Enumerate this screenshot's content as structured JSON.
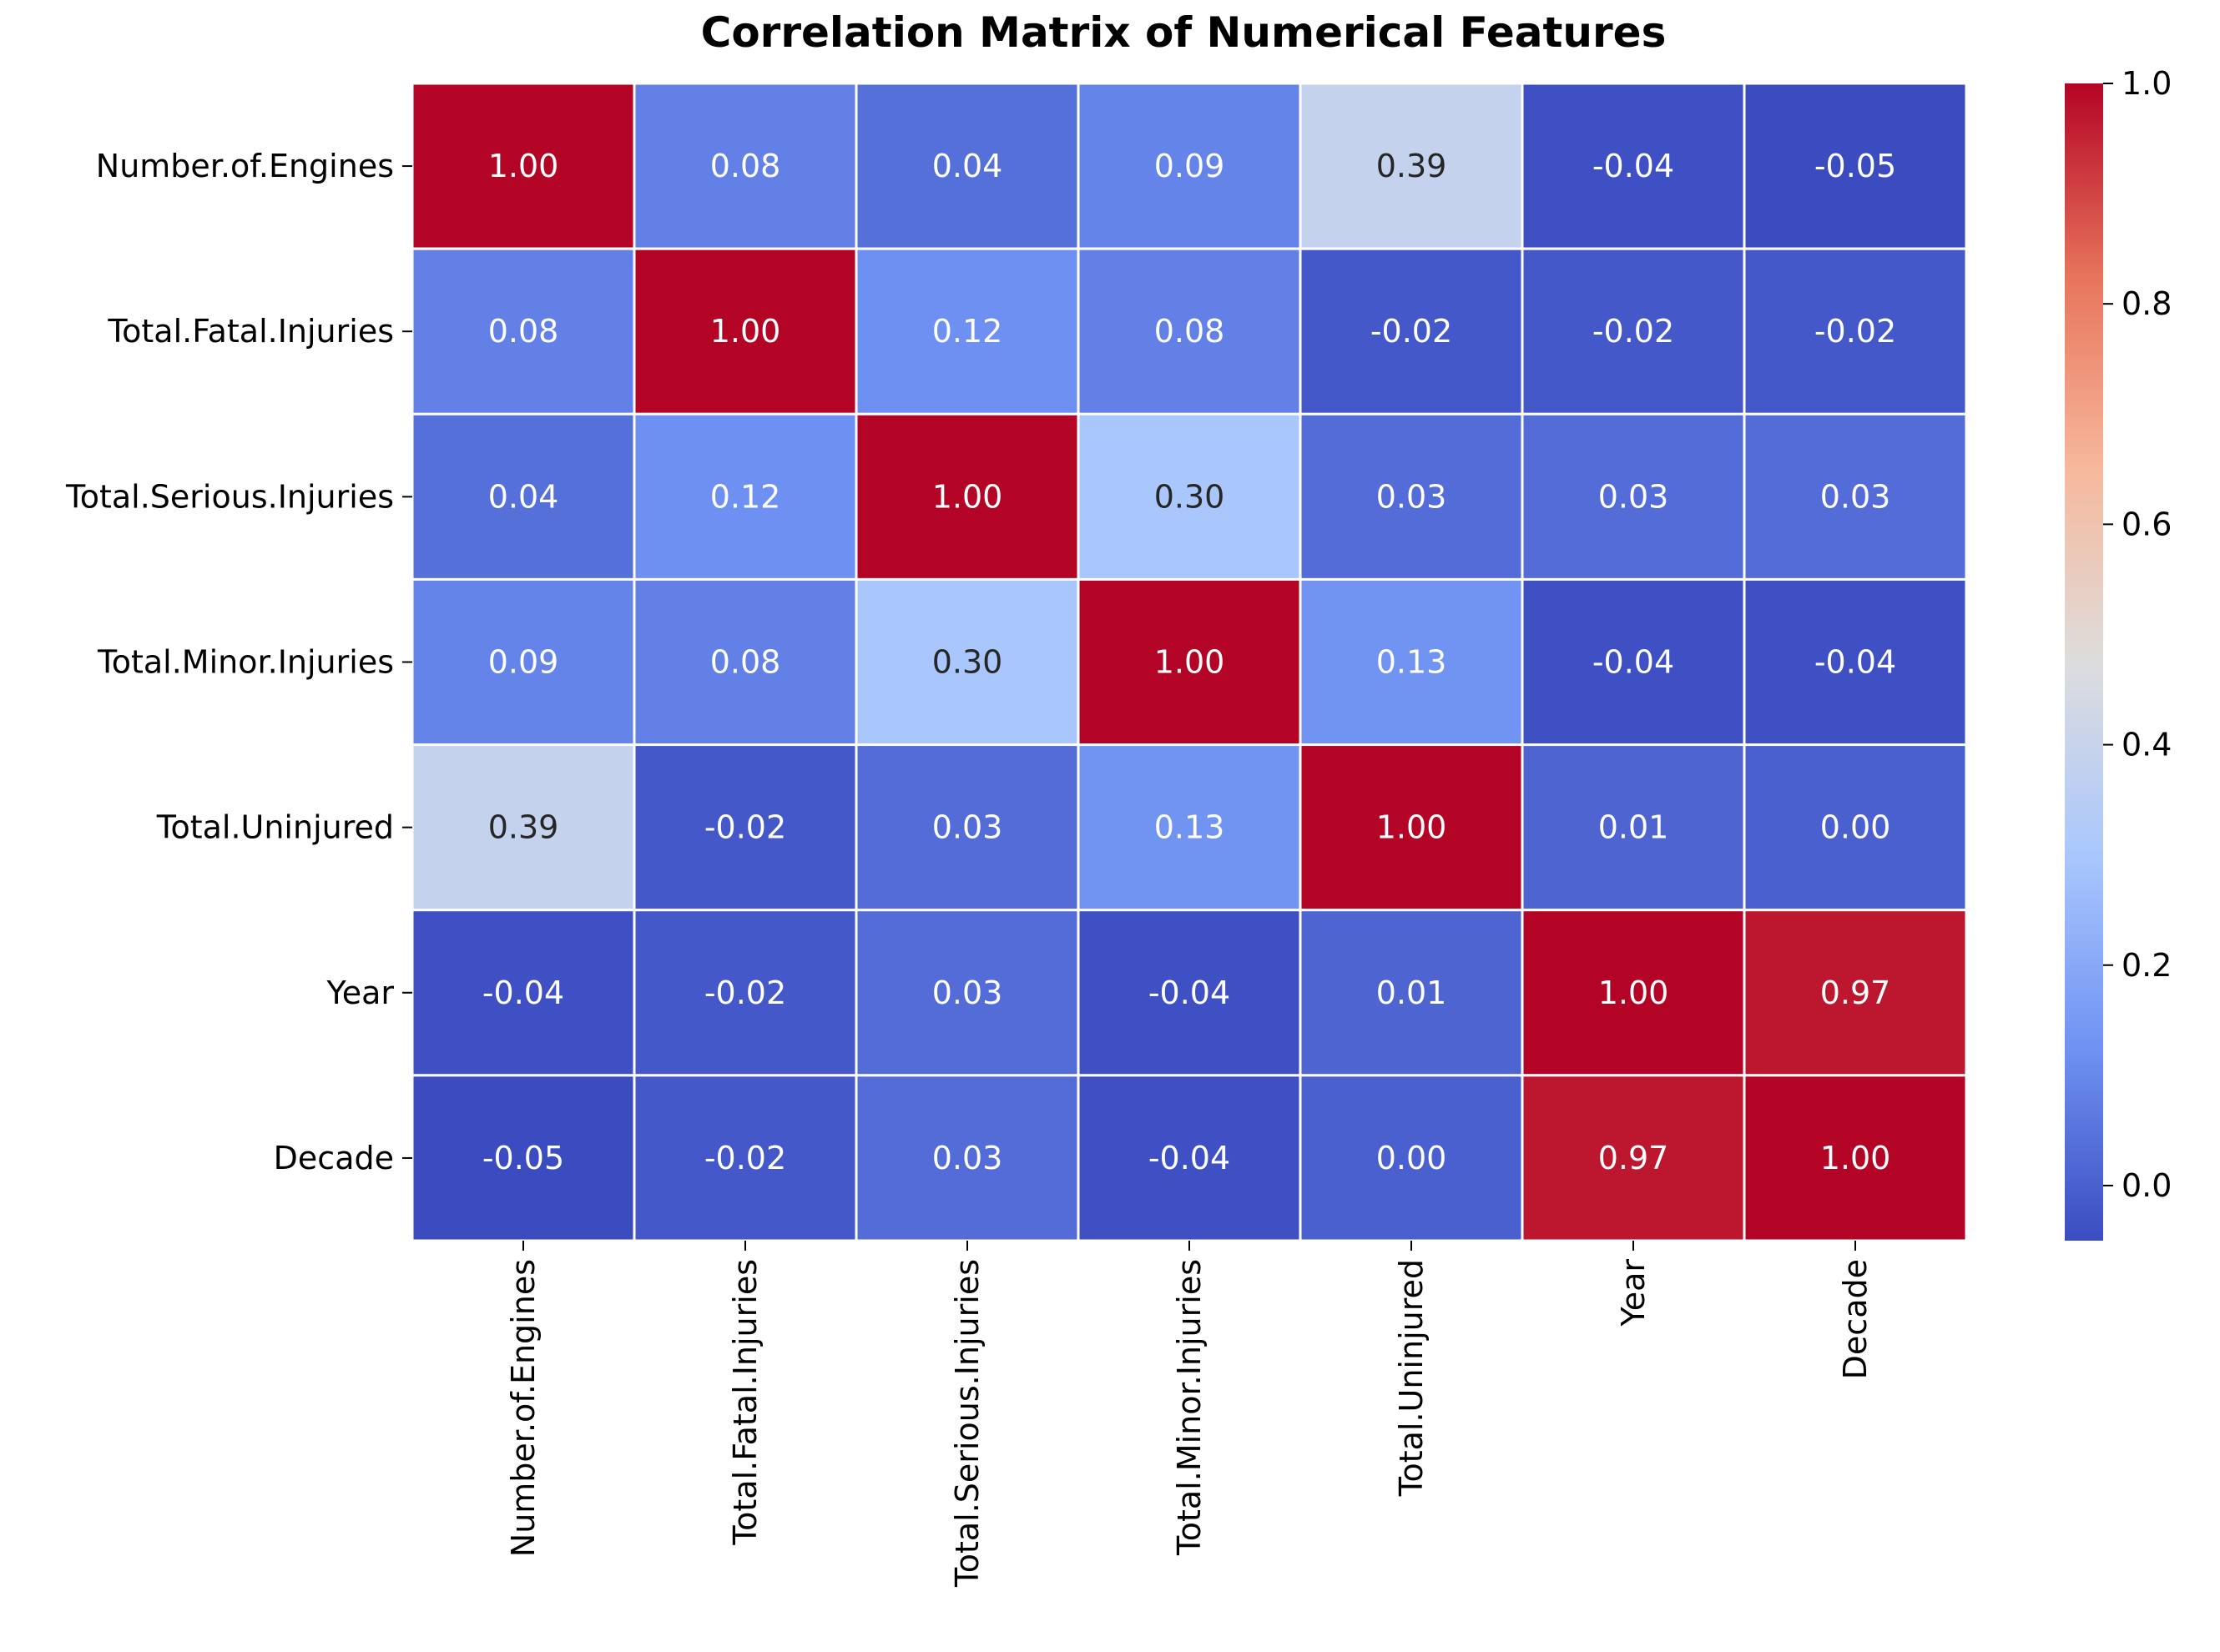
{
  "chart_data": {
    "type": "heatmap",
    "title": "Correlation Matrix of Numerical Features",
    "xlabel": "",
    "ylabel": "",
    "colormap": "coolwarm",
    "colormap_stops": [
      "#3b4cc0",
      "#6f92f3",
      "#aac7fd",
      "#dddddd",
      "#f7b89c",
      "#e7745b",
      "#b40426"
    ],
    "row_labels": [
      "Number.of.Engines",
      "Total.Fatal.Injuries",
      "Total.Serious.Injuries",
      "Total.Minor.Injuries",
      "Total.Uninjured",
      "Year",
      "Decade"
    ],
    "col_labels": [
      "Number.of.Engines",
      "Total.Fatal.Injuries",
      "Total.Serious.Injuries",
      "Total.Minor.Injuries",
      "Total.Uninjured",
      "Year",
      "Decade"
    ],
    "values": [
      [
        1.0,
        0.08,
        0.04,
        0.09,
        0.39,
        -0.04,
        -0.05
      ],
      [
        0.08,
        1.0,
        0.12,
        0.08,
        -0.02,
        -0.02,
        -0.02
      ],
      [
        0.04,
        0.12,
        1.0,
        0.3,
        0.03,
        0.03,
        0.03
      ],
      [
        0.09,
        0.08,
        0.3,
        1.0,
        0.13,
        -0.04,
        -0.04
      ],
      [
        0.39,
        -0.02,
        0.03,
        0.13,
        1.0,
        0.01,
        0.0
      ],
      [
        -0.04,
        -0.02,
        0.03,
        -0.04,
        0.01,
        1.0,
        0.97
      ],
      [
        -0.05,
        -0.02,
        0.03,
        -0.04,
        0.0,
        0.97,
        1.0
      ]
    ],
    "annotation_format": "0.00",
    "vmin": -0.05,
    "vmax": 1.0,
    "colorbar_ticks": [
      "0.0",
      "0.2",
      "0.4",
      "0.6",
      "0.8",
      "1.0"
    ],
    "cell_border_color": "#ffffff",
    "annotation_light_color": "#ffffff",
    "annotation_dark_color": "#262626"
  }
}
